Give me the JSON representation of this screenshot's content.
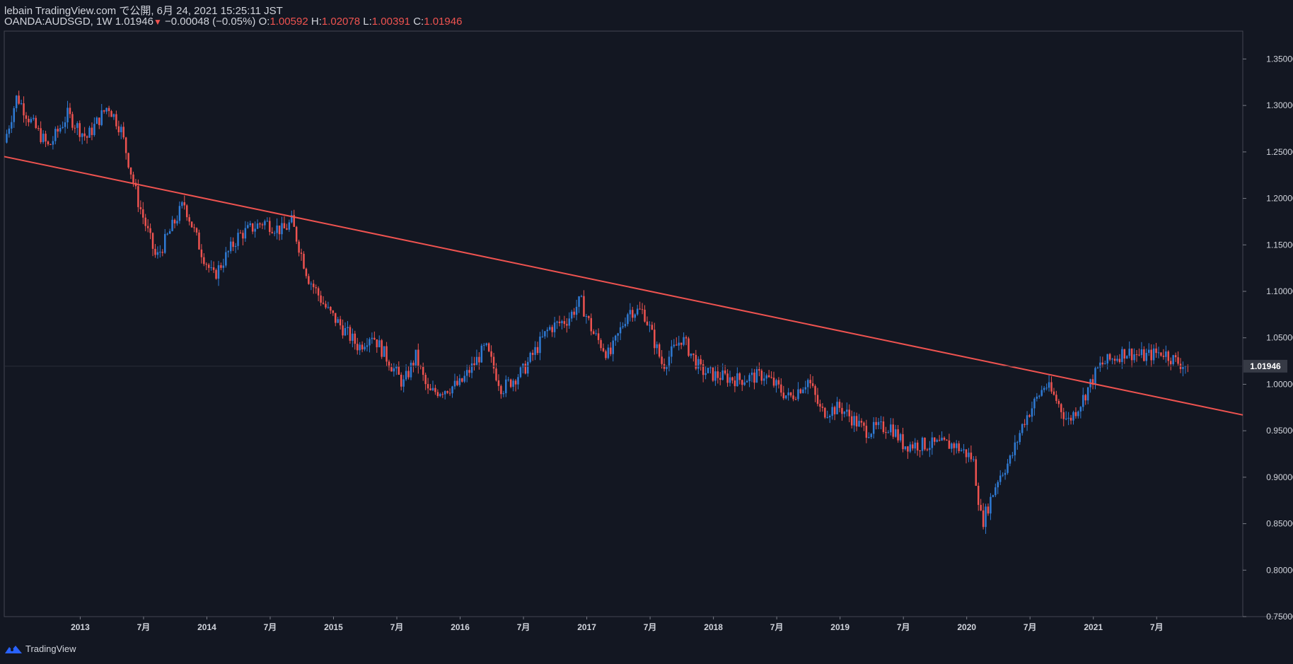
{
  "header": {
    "line1": "lebain TradingView.com で公開, 6月 24, 2021 15:25:11 JST",
    "symbol": "OANDA:AUDSGD, 1W",
    "last": "1.01946",
    "change": "−0.00048 (−0.05%)",
    "open_label": "O:",
    "open": "1.00592",
    "high_label": "H:",
    "high": "1.02078",
    "low_label": "L:",
    "low": "1.00391",
    "close_label": "C:",
    "close": "1.01946"
  },
  "footer": {
    "brand": "TradingView"
  },
  "colors": {
    "background": "#131722",
    "up": "#2f7bd5",
    "down": "#ef5350",
    "trendline": "#ef5350",
    "axis_text": "#d1d4dc"
  },
  "chart_data": {
    "type": "candlestick",
    "title": "OANDA:AUDSGD, 1W",
    "timeframe": "1W",
    "x_range": [
      2012.0,
      2021.78
    ],
    "y_range": [
      0.75,
      1.38
    ],
    "y_ticks": [
      "1.35000",
      "1.30000",
      "1.25000",
      "1.20000",
      "1.15000",
      "1.10000",
      "1.05000",
      "1.00000",
      "0.95000",
      "0.90000",
      "0.85000",
      "0.80000",
      "0.75000"
    ],
    "x_ticks": [
      {
        "t": 2012.6,
        "label": "2013"
      },
      {
        "t": 2013.1,
        "label": "7月"
      },
      {
        "t": 2013.6,
        "label": "2014"
      },
      {
        "t": 2014.1,
        "label": "7月"
      },
      {
        "t": 2014.6,
        "label": "2015"
      },
      {
        "t": 2015.1,
        "label": "7月"
      },
      {
        "t": 2015.6,
        "label": "2016"
      },
      {
        "t": 2016.1,
        "label": "7月"
      },
      {
        "t": 2016.6,
        "label": "2017"
      },
      {
        "t": 2017.1,
        "label": "7月"
      },
      {
        "t": 2017.6,
        "label": "2018"
      },
      {
        "t": 2018.1,
        "label": "7月"
      },
      {
        "t": 2018.6,
        "label": "2019"
      },
      {
        "t": 2019.1,
        "label": "7月"
      },
      {
        "t": 2019.6,
        "label": "2020"
      },
      {
        "t": 2020.1,
        "label": "7月"
      },
      {
        "t": 2020.6,
        "label": "2021"
      },
      {
        "t": 2021.1,
        "label": "7月"
      }
    ],
    "last_price": 1.01946,
    "last_price_label": "1.01946",
    "trendline": {
      "t1": 2012.0,
      "p1": 1.245,
      "t2": 2021.78,
      "p2": 0.967
    },
    "anchors": [
      [
        2012.0,
        1.26
      ],
      [
        2012.1,
        1.31
      ],
      [
        2012.2,
        1.285
      ],
      [
        2012.35,
        1.255
      ],
      [
        2012.5,
        1.29
      ],
      [
        2012.65,
        1.265
      ],
      [
        2012.82,
        1.3
      ],
      [
        2012.92,
        1.275
      ],
      [
        2013.05,
        1.2
      ],
      [
        2013.2,
        1.135
      ],
      [
        2013.42,
        1.195
      ],
      [
        2013.55,
        1.145
      ],
      [
        2013.65,
        1.115
      ],
      [
        2013.85,
        1.16
      ],
      [
        2014.05,
        1.175
      ],
      [
        2014.2,
        1.165
      ],
      [
        2014.27,
        1.175
      ],
      [
        2014.4,
        1.115
      ],
      [
        2014.55,
        1.08
      ],
      [
        2014.8,
        1.04
      ],
      [
        2014.9,
        1.055
      ],
      [
        2015.15,
        1.0
      ],
      [
        2015.25,
        1.03
      ],
      [
        2015.35,
        0.99
      ],
      [
        2015.6,
        1.0
      ],
      [
        2015.8,
        1.04
      ],
      [
        2015.93,
        0.995
      ],
      [
        2016.1,
        1.015
      ],
      [
        2016.3,
        1.06
      ],
      [
        2016.45,
        1.07
      ],
      [
        2016.55,
        1.09
      ],
      [
        2016.65,
        1.055
      ],
      [
        2016.78,
        1.03
      ],
      [
        2016.93,
        1.08
      ],
      [
        2017.05,
        1.078
      ],
      [
        2017.2,
        1.02
      ],
      [
        2017.35,
        1.05
      ],
      [
        2017.5,
        1.015
      ],
      [
        2017.6,
        1.01
      ],
      [
        2017.8,
        1.005
      ],
      [
        2018.0,
        1.01
      ],
      [
        2018.2,
        0.985
      ],
      [
        2018.35,
        1.005
      ],
      [
        2018.45,
        0.97
      ],
      [
        2018.6,
        0.975
      ],
      [
        2018.8,
        0.95
      ],
      [
        2019.0,
        0.955
      ],
      [
        2019.1,
        0.935
      ],
      [
        2019.35,
        0.935
      ],
      [
        2019.5,
        0.935
      ],
      [
        2019.65,
        0.92
      ],
      [
        2019.72,
        0.85
      ],
      [
        2019.85,
        0.9
      ],
      [
        2019.95,
        0.92
      ],
      [
        2020.05,
        0.96
      ],
      [
        2020.22,
        1.0
      ],
      [
        2020.3,
        0.985
      ],
      [
        2020.4,
        0.96
      ],
      [
        2020.5,
        0.98
      ],
      [
        2020.65,
        1.02
      ],
      [
        2020.85,
        1.035
      ],
      [
        2021.0,
        1.03
      ],
      [
        2021.15,
        1.035
      ],
      [
        2021.25,
        1.025
      ],
      [
        2021.34,
        1.019
      ]
    ]
  }
}
